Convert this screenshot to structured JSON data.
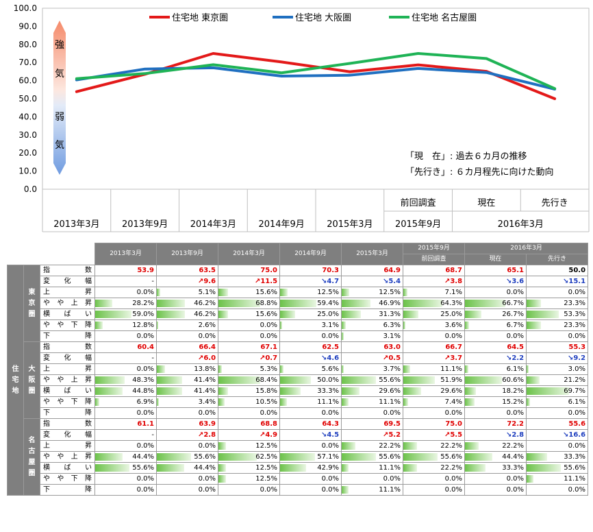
{
  "chart_data": {
    "type": "line",
    "ylim": [
      0,
      100
    ],
    "yticks": [
      "0.0",
      "10.0",
      "20.0",
      "30.0",
      "40.0",
      "50.0",
      "60.0",
      "70.0",
      "80.0",
      "90.0",
      "100.0"
    ],
    "categories": [
      "2013年3月",
      "2013年9月",
      "2014年3月",
      "2014年9月",
      "2015年3月",
      "2015年9月",
      "2016年3月",
      "2016年3月"
    ],
    "category_row2": [
      "",
      "",
      "",
      "",
      "",
      "前回調査",
      "現在",
      "先行き"
    ],
    "category_row3": [
      "2013年3月",
      "2013年9月",
      "2014年3月",
      "2014年9月",
      "2015年3月",
      "2015年9月",
      "2016年3月"
    ],
    "series": [
      {
        "name": "住宅地 東京圏",
        "color": "#e31919",
        "values": [
          53.9,
          63.5,
          75.0,
          70.3,
          64.9,
          68.7,
          65.1,
          50.0
        ]
      },
      {
        "name": "住宅地 大阪圏",
        "color": "#1f6fc0",
        "values": [
          60.4,
          66.4,
          67.1,
          62.5,
          63.0,
          66.7,
          64.5,
          55.3
        ]
      },
      {
        "name": "住宅地 名古屋圏",
        "color": "#1fb356",
        "values": [
          61.1,
          63.9,
          68.8,
          64.3,
          69.5,
          75.0,
          72.2,
          55.6
        ]
      }
    ],
    "strength_labels": [
      "強",
      "気",
      "弱",
      "気"
    ],
    "notes": [
      "「現　在」: 過去６カ月の推移",
      "「先行き」: ６カ月程先に向けた動向"
    ],
    "legend": "top"
  },
  "table": {
    "headers": [
      "2013年3月",
      "2013年9月",
      "2014年3月",
      "2014年9月",
      "2015年3月",
      "2015年9月",
      "2016年3月"
    ],
    "subheaders": [
      "前回調査",
      "現在",
      "先行き"
    ],
    "category": "住宅地",
    "row_labels": [
      "指　数",
      "変 化 幅",
      "上　昇",
      "や や 上 昇",
      "横 ば い",
      "や や 下 降",
      "下　降"
    ],
    "regions": [
      {
        "name": "東京圏",
        "index": [
          "53.9",
          "63.5",
          "75.0",
          "70.3",
          "64.9",
          "68.7",
          "65.1",
          "50.0"
        ],
        "change": [
          "-",
          "↗9.6",
          "↗11.5",
          "↘4.7",
          "↘5.4",
          "↗3.8",
          "↘3.6",
          "↘15.1"
        ],
        "rows": [
          [
            "0.0%",
            "5.1%",
            "15.6%",
            "12.5%",
            "12.5%",
            "7.1%",
            "0.0%",
            "0.0%"
          ],
          [
            "28.2%",
            "46.2%",
            "68.8%",
            "59.4%",
            "46.9%",
            "64.3%",
            "66.7%",
            "23.3%"
          ],
          [
            "59.0%",
            "46.2%",
            "15.6%",
            "25.0%",
            "31.3%",
            "25.0%",
            "26.7%",
            "53.3%"
          ],
          [
            "12.8%",
            "2.6%",
            "0.0%",
            "3.1%",
            "6.3%",
            "3.6%",
            "6.7%",
            "23.3%"
          ],
          [
            "0.0%",
            "0.0%",
            "0.0%",
            "0.0%",
            "3.1%",
            "0.0%",
            "0.0%",
            "0.0%"
          ]
        ]
      },
      {
        "name": "大阪圏",
        "index": [
          "60.4",
          "66.4",
          "67.1",
          "62.5",
          "63.0",
          "66.7",
          "64.5",
          "55.3"
        ],
        "change": [
          "-",
          "↗6.0",
          "↗0.7",
          "↘4.6",
          "↗0.5",
          "↗3.7",
          "↘2.2",
          "↘9.2"
        ],
        "rows": [
          [
            "0.0%",
            "13.8%",
            "5.3%",
            "5.6%",
            "3.7%",
            "11.1%",
            "6.1%",
            "3.0%"
          ],
          [
            "48.3%",
            "41.4%",
            "68.4%",
            "50.0%",
            "55.6%",
            "51.9%",
            "60.6%",
            "21.2%"
          ],
          [
            "44.8%",
            "41.4%",
            "15.8%",
            "33.3%",
            "29.6%",
            "29.6%",
            "18.2%",
            "69.7%"
          ],
          [
            "6.9%",
            "3.4%",
            "10.5%",
            "11.1%",
            "11.1%",
            "7.4%",
            "15.2%",
            "6.1%"
          ],
          [
            "0.0%",
            "0.0%",
            "0.0%",
            "0.0%",
            "0.0%",
            "0.0%",
            "0.0%",
            "0.0%"
          ]
        ]
      },
      {
        "name": "名古屋圏",
        "index": [
          "61.1",
          "63.9",
          "68.8",
          "64.3",
          "69.5",
          "75.0",
          "72.2",
          "55.6"
        ],
        "change": [
          "-",
          "↗2.8",
          "↗4.9",
          "↘4.5",
          "↗5.2",
          "↗5.5",
          "↘2.8",
          "↘16.6"
        ],
        "rows": [
          [
            "0.0%",
            "0.0%",
            "12.5%",
            "0.0%",
            "22.2%",
            "22.2%",
            "22.2%",
            "0.0%"
          ],
          [
            "44.4%",
            "55.6%",
            "62.5%",
            "57.1%",
            "55.6%",
            "55.6%",
            "44.4%",
            "33.3%"
          ],
          [
            "55.6%",
            "44.4%",
            "12.5%",
            "42.9%",
            "11.1%",
            "22.2%",
            "33.3%",
            "55.6%"
          ],
          [
            "0.0%",
            "0.0%",
            "12.5%",
            "0.0%",
            "0.0%",
            "0.0%",
            "0.0%",
            "11.1%"
          ],
          [
            "0.0%",
            "0.0%",
            "0.0%",
            "0.0%",
            "11.1%",
            "0.0%",
            "0.0%",
            "0.0%"
          ]
        ]
      }
    ]
  }
}
